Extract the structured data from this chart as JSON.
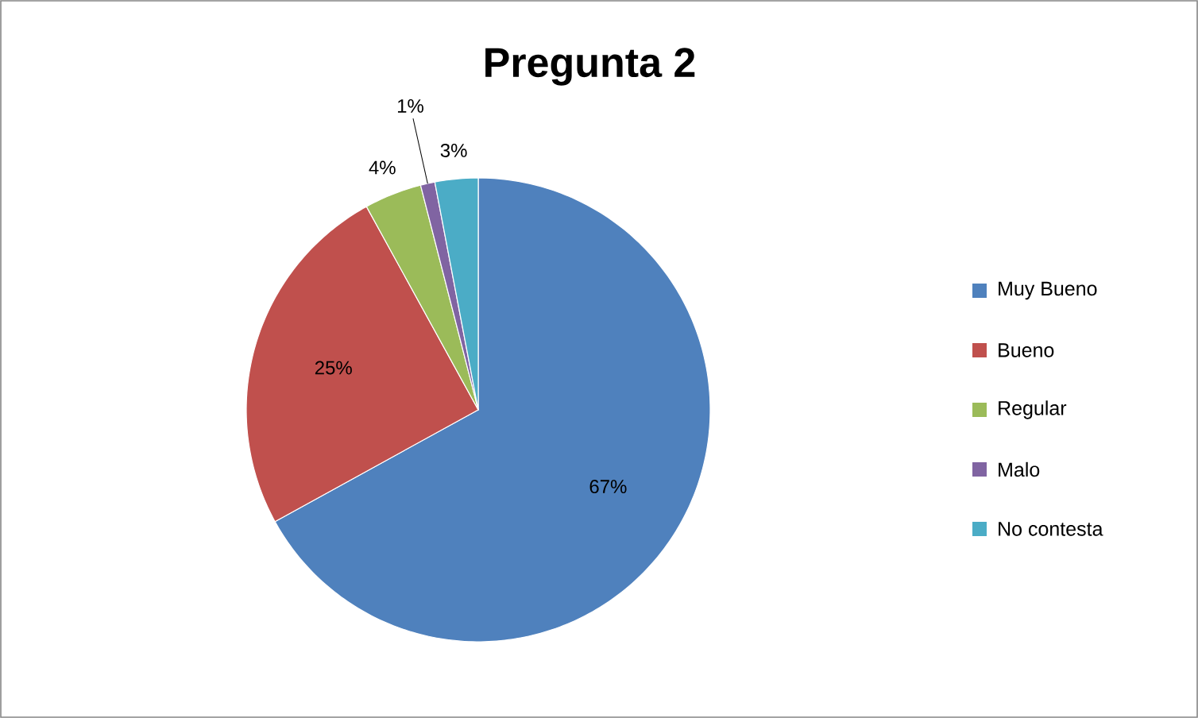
{
  "chart_data": {
    "type": "pie",
    "title": "Pregunta 2",
    "categories": [
      "Muy Bueno",
      "Bueno",
      "Regular",
      "Malo",
      "No contesta"
    ],
    "values": [
      67,
      25,
      4,
      1,
      3
    ],
    "colors": [
      "#4f81bd",
      "#c0504d",
      "#9bbb59",
      "#8064a2",
      "#4bacc6"
    ],
    "value_labels": [
      "67%",
      "25%",
      "4%",
      "1%",
      "3%"
    ],
    "legend": "right"
  }
}
